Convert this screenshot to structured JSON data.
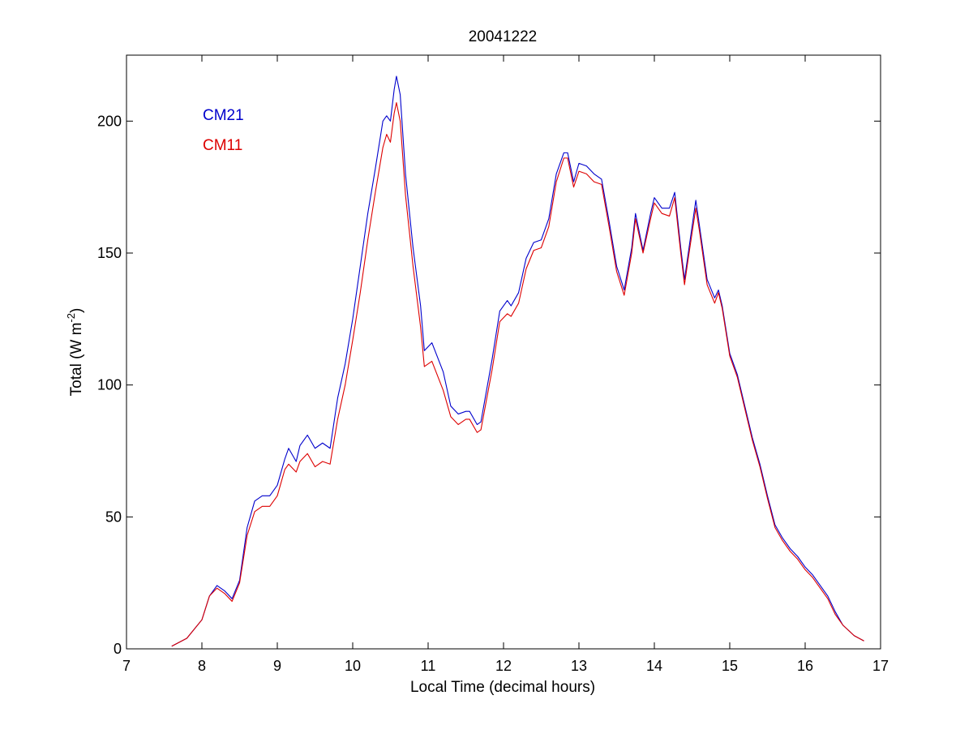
{
  "chart_data": {
    "type": "line",
    "title": "20041222",
    "xlabel": "Local Time (decimal hours)",
    "ylabel_parts": {
      "main": "Total (W m",
      "sup": "-2",
      "close": ")"
    },
    "xlim": [
      7,
      17
    ],
    "ylim": [
      0,
      225
    ],
    "xticks": [
      7,
      8,
      9,
      10,
      11,
      12,
      13,
      14,
      15,
      16,
      17
    ],
    "yticks": [
      0,
      50,
      100,
      150,
      200
    ],
    "grid": false,
    "legend": {
      "placement": "top-left",
      "style": "text-only"
    },
    "series": [
      {
        "name": "CM21",
        "color": "#0000cc",
        "points": [
          [
            7.6,
            1
          ],
          [
            7.8,
            4
          ],
          [
            8.0,
            11
          ],
          [
            8.1,
            20
          ],
          [
            8.2,
            24
          ],
          [
            8.3,
            22
          ],
          [
            8.4,
            19
          ],
          [
            8.5,
            26
          ],
          [
            8.6,
            46
          ],
          [
            8.7,
            56
          ],
          [
            8.8,
            58
          ],
          [
            8.9,
            58
          ],
          [
            9.0,
            62
          ],
          [
            9.1,
            72
          ],
          [
            9.15,
            76
          ],
          [
            9.25,
            71
          ],
          [
            9.3,
            77
          ],
          [
            9.4,
            81
          ],
          [
            9.5,
            76
          ],
          [
            9.6,
            78
          ],
          [
            9.7,
            76
          ],
          [
            9.8,
            95
          ],
          [
            9.9,
            108
          ],
          [
            10.0,
            125
          ],
          [
            10.1,
            145
          ],
          [
            10.2,
            165
          ],
          [
            10.3,
            182
          ],
          [
            10.4,
            200
          ],
          [
            10.45,
            202
          ],
          [
            10.5,
            200
          ],
          [
            10.55,
            212
          ],
          [
            10.58,
            217
          ],
          [
            10.63,
            210
          ],
          [
            10.7,
            180
          ],
          [
            10.8,
            152
          ],
          [
            10.9,
            130
          ],
          [
            10.95,
            113
          ],
          [
            11.05,
            116
          ],
          [
            11.2,
            105
          ],
          [
            11.3,
            92
          ],
          [
            11.4,
            89
          ],
          [
            11.5,
            90
          ],
          [
            11.55,
            90
          ],
          [
            11.65,
            85
          ],
          [
            11.7,
            86
          ],
          [
            11.85,
            110
          ],
          [
            11.95,
            128
          ],
          [
            12.05,
            132
          ],
          [
            12.1,
            130
          ],
          [
            12.2,
            135
          ],
          [
            12.3,
            148
          ],
          [
            12.4,
            154
          ],
          [
            12.5,
            155
          ],
          [
            12.6,
            163
          ],
          [
            12.7,
            180
          ],
          [
            12.8,
            188
          ],
          [
            12.85,
            188
          ],
          [
            12.93,
            177
          ],
          [
            13.0,
            184
          ],
          [
            13.1,
            183
          ],
          [
            13.2,
            180
          ],
          [
            13.3,
            178
          ],
          [
            13.4,
            162
          ],
          [
            13.5,
            145
          ],
          [
            13.6,
            136
          ],
          [
            13.7,
            152
          ],
          [
            13.75,
            165
          ],
          [
            13.85,
            151
          ],
          [
            13.95,
            165
          ],
          [
            14.0,
            171
          ],
          [
            14.1,
            167
          ],
          [
            14.2,
            167
          ],
          [
            14.27,
            173
          ],
          [
            14.35,
            152
          ],
          [
            14.4,
            140
          ],
          [
            14.45,
            150
          ],
          [
            14.55,
            170
          ],
          [
            14.6,
            160
          ],
          [
            14.7,
            140
          ],
          [
            14.8,
            133
          ],
          [
            14.85,
            136
          ],
          [
            14.9,
            130
          ],
          [
            15.0,
            112
          ],
          [
            15.1,
            104
          ],
          [
            15.2,
            92
          ],
          [
            15.3,
            80
          ],
          [
            15.4,
            70
          ],
          [
            15.5,
            58
          ],
          [
            15.6,
            47
          ],
          [
            15.7,
            42
          ],
          [
            15.8,
            38
          ],
          [
            15.9,
            35
          ],
          [
            16.0,
            31
          ],
          [
            16.1,
            28
          ],
          [
            16.2,
            24
          ],
          [
            16.3,
            20
          ],
          [
            16.4,
            14
          ],
          [
            16.5,
            9
          ],
          [
            16.65,
            5
          ],
          [
            16.78,
            3
          ]
        ]
      },
      {
        "name": "CM11",
        "color": "#dd0000",
        "points": [
          [
            7.6,
            1
          ],
          [
            7.8,
            4
          ],
          [
            8.0,
            11
          ],
          [
            8.1,
            20
          ],
          [
            8.2,
            23
          ],
          [
            8.3,
            21
          ],
          [
            8.4,
            18
          ],
          [
            8.5,
            25
          ],
          [
            8.6,
            43
          ],
          [
            8.7,
            52
          ],
          [
            8.8,
            54
          ],
          [
            8.9,
            54
          ],
          [
            9.0,
            58
          ],
          [
            9.1,
            68
          ],
          [
            9.15,
            70
          ],
          [
            9.25,
            67
          ],
          [
            9.3,
            71
          ],
          [
            9.4,
            74
          ],
          [
            9.5,
            69
          ],
          [
            9.6,
            71
          ],
          [
            9.7,
            70
          ],
          [
            9.8,
            87
          ],
          [
            9.9,
            100
          ],
          [
            10.0,
            117
          ],
          [
            10.1,
            135
          ],
          [
            10.2,
            155
          ],
          [
            10.3,
            173
          ],
          [
            10.4,
            190
          ],
          [
            10.45,
            195
          ],
          [
            10.5,
            192
          ],
          [
            10.55,
            203
          ],
          [
            10.58,
            207
          ],
          [
            10.63,
            200
          ],
          [
            10.7,
            172
          ],
          [
            10.8,
            145
          ],
          [
            10.9,
            122
          ],
          [
            10.95,
            107
          ],
          [
            11.05,
            109
          ],
          [
            11.2,
            98
          ],
          [
            11.3,
            88
          ],
          [
            11.4,
            85
          ],
          [
            11.5,
            87
          ],
          [
            11.55,
            87
          ],
          [
            11.65,
            82
          ],
          [
            11.7,
            83
          ],
          [
            11.85,
            106
          ],
          [
            11.95,
            124
          ],
          [
            12.05,
            127
          ],
          [
            12.1,
            126
          ],
          [
            12.2,
            131
          ],
          [
            12.3,
            144
          ],
          [
            12.4,
            151
          ],
          [
            12.5,
            152
          ],
          [
            12.6,
            160
          ],
          [
            12.7,
            177
          ],
          [
            12.8,
            186
          ],
          [
            12.85,
            186
          ],
          [
            12.93,
            175
          ],
          [
            13.0,
            181
          ],
          [
            13.1,
            180
          ],
          [
            13.2,
            177
          ],
          [
            13.3,
            176
          ],
          [
            13.4,
            160
          ],
          [
            13.5,
            143
          ],
          [
            13.6,
            134
          ],
          [
            13.7,
            150
          ],
          [
            13.75,
            163
          ],
          [
            13.85,
            150
          ],
          [
            13.95,
            163
          ],
          [
            14.0,
            169
          ],
          [
            14.1,
            165
          ],
          [
            14.2,
            164
          ],
          [
            14.27,
            171
          ],
          [
            14.35,
            150
          ],
          [
            14.4,
            138
          ],
          [
            14.45,
            148
          ],
          [
            14.55,
            167
          ],
          [
            14.6,
            158
          ],
          [
            14.7,
            138
          ],
          [
            14.8,
            131
          ],
          [
            14.85,
            135
          ],
          [
            14.9,
            129
          ],
          [
            15.0,
            111
          ],
          [
            15.1,
            103
          ],
          [
            15.2,
            91
          ],
          [
            15.3,
            79
          ],
          [
            15.4,
            69
          ],
          [
            15.5,
            57
          ],
          [
            15.6,
            46
          ],
          [
            15.7,
            41
          ],
          [
            15.8,
            37
          ],
          [
            15.9,
            34
          ],
          [
            16.0,
            30
          ],
          [
            16.1,
            27
          ],
          [
            16.2,
            23
          ],
          [
            16.3,
            19
          ],
          [
            16.4,
            13
          ],
          [
            16.5,
            9
          ],
          [
            16.65,
            5
          ],
          [
            16.78,
            3
          ]
        ]
      }
    ]
  }
}
